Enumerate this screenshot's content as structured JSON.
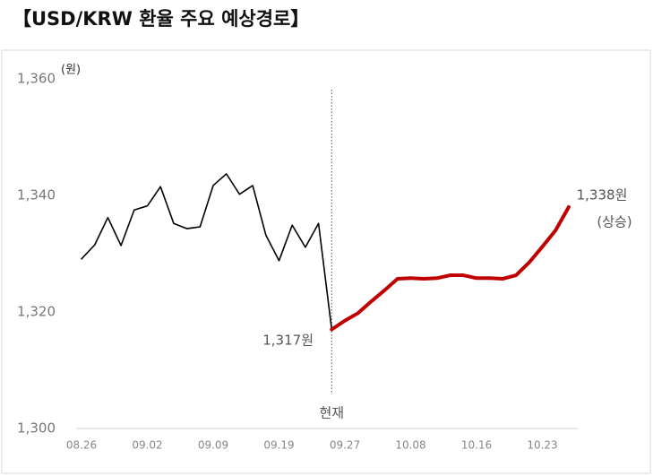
{
  "chart_data": {
    "type": "line",
    "title": "【USD/KRW 환율 주요 예상경로】",
    "y_unit": "(원)",
    "categories": [
      "08.26",
      null,
      null,
      null,
      null,
      "09.02",
      null,
      null,
      null,
      null,
      "09.09",
      null,
      null,
      null,
      null,
      "09.19",
      null,
      null,
      null,
      null,
      "09.27",
      null,
      null,
      null,
      null,
      "10.08",
      null,
      null,
      null,
      null,
      "10.16",
      null,
      null,
      null,
      null,
      "10.23",
      null,
      null
    ],
    "series": [
      {
        "color": "#000000",
        "values": [
          1329.1,
          1331.5,
          1336.2,
          1331.4,
          1337.5,
          1338.2,
          1341.5,
          1335.2,
          1334.3,
          1334.6,
          1341.7,
          1343.7,
          1340.2,
          1341.7,
          1333.2,
          1328.8,
          1334.9,
          1331.1,
          1335.2,
          1317,
          null,
          null,
          null,
          null,
          null,
          null,
          null,
          null,
          null,
          null,
          null,
          null,
          null,
          null,
          null,
          null,
          null,
          null
        ]
      },
      {
        "color": "#c00000",
        "values": [
          null,
          null,
          null,
          null,
          null,
          null,
          null,
          null,
          null,
          null,
          null,
          null,
          null,
          null,
          null,
          null,
          null,
          null,
          null,
          1317,
          1318.5,
          1319.8,
          1321.8,
          1323.7,
          1325.7,
          1325.8,
          1325.7,
          1325.8,
          1326.3,
          1326.3,
          1325.8,
          1325.8,
          1325.7,
          1326.3,
          1328.5,
          1331.2,
          1334,
          1338
        ]
      }
    ],
    "ylim": [
      1300,
      1360
    ],
    "yticks": [
      {
        "value": 1300,
        "label": "1,300"
      },
      {
        "value": 1320,
        "label": "1,320"
      },
      {
        "value": 1340,
        "label": "1,340"
      },
      {
        "value": 1360,
        "label": "1,360"
      }
    ],
    "annotations": [
      "1,317원",
      "1,338원",
      "(상승)",
      "현재"
    ],
    "current_index": 19,
    "grid": false
  }
}
